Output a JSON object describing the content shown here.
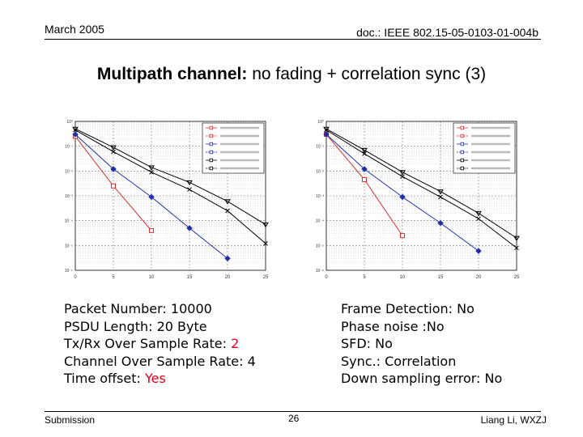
{
  "header": {
    "date": "March 2005",
    "doc": "doc.: IEEE 802.15-05-0103-01-004b"
  },
  "title": {
    "bold": "Multipath channel:",
    "rest": " no fading + correlation sync (3)"
  },
  "params_left": [
    {
      "text": "Packet Number: 10000",
      "highlight": ""
    },
    {
      "text": "PSDU Length: 20 Byte",
      "highlight": ""
    },
    {
      "text": "Tx/Rx Over Sample Rate: ",
      "highlight": "2"
    },
    {
      "text": "Channel Over Sample Rate: 4",
      "highlight": ""
    },
    {
      "text": "Time offset: ",
      "highlight": "Yes"
    }
  ],
  "params_right": [
    "Frame Detection: No",
    "Phase noise :No",
    "SFD: No",
    "Sync.: Correlation",
    "Down sampling error: No"
  ],
  "footer": {
    "left": "Submission",
    "page": "26",
    "right": "Liang Li, WXZJ"
  },
  "chart_data": [
    {
      "type": "line",
      "x": [
        0,
        5,
        10,
        15,
        20,
        25
      ],
      "xlim": [
        0,
        25
      ],
      "ylog": true,
      "ylim_exp": [
        -6,
        0
      ],
      "grid": true,
      "legend": "top-right",
      "series": [
        {
          "color": "#d32f2f",
          "marker": "square",
          "values": [
            0.25,
            0.0025,
            4e-05,
            null,
            null,
            null
          ]
        },
        {
          "color": "#1f2fa8",
          "marker": "diamond",
          "values": [
            0.3,
            0.012,
            0.0009,
            5e-05,
            3e-06,
            null
          ]
        },
        {
          "color": "#000000",
          "marker": "x",
          "values": [
            0.45,
            0.06,
            0.009,
            0.0018,
            0.00025,
            1.2e-05
          ]
        },
        {
          "color": "#000000",
          "marker": "triangle",
          "values": [
            0.5,
            0.09,
            0.014,
            0.0035,
            0.0006,
            7e-05
          ]
        }
      ]
    },
    {
      "type": "line",
      "x": [
        0,
        5,
        10,
        15,
        20,
        25
      ],
      "xlim": [
        0,
        25
      ],
      "ylog": true,
      "ylim_exp": [
        -6,
        0
      ],
      "grid": true,
      "legend": "top-right",
      "series": [
        {
          "color": "#d32f2f",
          "marker": "square",
          "values": [
            0.3,
            0.0045,
            2.5e-05,
            null,
            null,
            null
          ]
        },
        {
          "color": "#1f2fa8",
          "marker": "diamond",
          "values": [
            0.3,
            0.012,
            0.0009,
            8e-05,
            6e-06,
            null
          ]
        },
        {
          "color": "#000000",
          "marker": "x",
          "values": [
            0.45,
            0.05,
            0.006,
            0.0009,
            0.00012,
            8e-06
          ]
        },
        {
          "color": "#000000",
          "marker": "triangle",
          "values": [
            0.5,
            0.07,
            0.009,
            0.0015,
            0.0002,
            2e-05
          ]
        }
      ]
    }
  ]
}
